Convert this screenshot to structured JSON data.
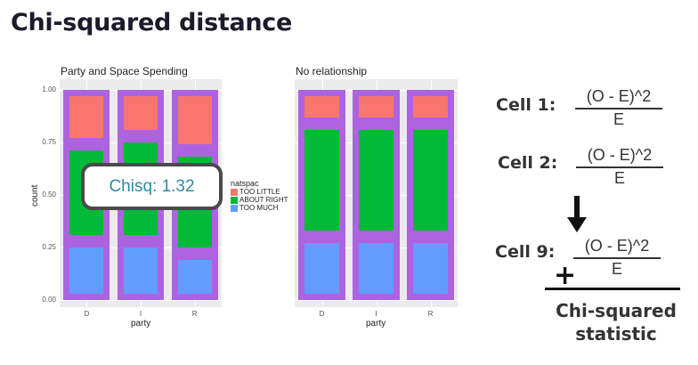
{
  "slide": {
    "title": "Chi-squared distance"
  },
  "chart_data": [
    {
      "type": "bar",
      "title": "Party and Space Spending",
      "xlabel": "party",
      "ylabel": "count",
      "categories": [
        "D",
        "I",
        "R"
      ],
      "yticks": [
        "0.00",
        "0.25",
        "0.50",
        "0.75",
        "1.00"
      ],
      "ylim": [
        0,
        1
      ],
      "stacked": true,
      "series": [
        {
          "name": "TOO MUCH",
          "color": "#619cff",
          "values": [
            0.28,
            0.28,
            0.22
          ]
        },
        {
          "name": "ABOUT RIGHT",
          "color": "#00ba38",
          "values": [
            0.46,
            0.5,
            0.49
          ]
        },
        {
          "name": "TOO LITTLE",
          "color": "#f8766d",
          "values": [
            0.26,
            0.22,
            0.29
          ]
        }
      ],
      "legend": {
        "title": "natspac",
        "items": [
          "TOO LITTLE",
          "ABOUT RIGHT",
          "TOO MUCH"
        ],
        "placement": "right"
      },
      "annotation": "Chisq: 1.32"
    },
    {
      "type": "bar",
      "title": "No relationship",
      "xlabel": "party",
      "ylabel": "",
      "categories": [
        "D",
        "I",
        "R"
      ],
      "ylim": [
        0,
        1
      ],
      "stacked": true,
      "series": [
        {
          "name": "TOO MUCH",
          "color": "#619cff",
          "values": [
            0.3,
            0.3,
            0.3
          ]
        },
        {
          "name": "ABOUT RIGHT",
          "color": "#00ba38",
          "values": [
            0.54,
            0.54,
            0.54
          ]
        },
        {
          "name": "TOO LITTLE",
          "color": "#f8766d",
          "values": [
            0.16,
            0.16,
            0.16
          ]
        }
      ]
    }
  ],
  "cells": [
    {
      "label": "Cell 1:",
      "numerator": "(O - E)^2",
      "denominator": "E"
    },
    {
      "label": "Cell 2:",
      "numerator": "(O - E)^2",
      "denominator": "E"
    },
    {
      "label": "Cell 9:",
      "numerator": "(O - E)^2",
      "denominator": "E"
    }
  ],
  "sum": {
    "plus": "+",
    "result_line1": "Chi-squared",
    "result_line2": "statistic"
  },
  "icons": {
    "arrow": "down-arrow-icon"
  }
}
